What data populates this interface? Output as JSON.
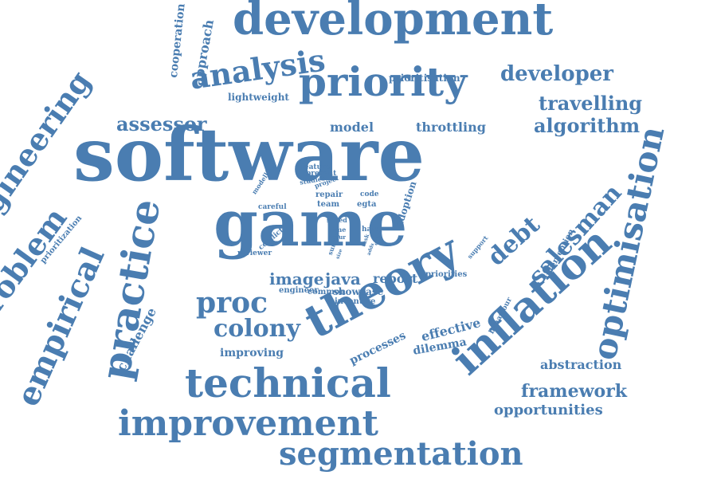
{
  "color": "#4a7db1",
  "background": "#ffffff",
  "words": [
    {
      "text": "software",
      "size": 92
    },
    {
      "text": "game",
      "size": 80
    },
    {
      "text": "development",
      "size": 56
    },
    {
      "text": "theory",
      "size": 58
    },
    {
      "text": "priority",
      "size": 50
    },
    {
      "text": "inflation",
      "size": 52
    },
    {
      "text": "technical",
      "size": 50
    },
    {
      "text": "improvement",
      "size": 44
    },
    {
      "text": "segmentation",
      "size": 40
    },
    {
      "text": "practice",
      "size": 50
    },
    {
      "text": "optimisation",
      "size": 42
    },
    {
      "text": "engineering",
      "size": 38
    },
    {
      "text": "empirical",
      "size": 40
    },
    {
      "text": "problem",
      "size": 38
    },
    {
      "text": "analysis",
      "size": 38
    },
    {
      "text": "proc",
      "size": 36
    },
    {
      "text": "colony",
      "size": 30
    },
    {
      "text": "salesman",
      "size": 30
    },
    {
      "text": "developer",
      "size": 26
    },
    {
      "text": "travelling",
      "size": 24
    },
    {
      "text": "algorithm",
      "size": 24
    },
    {
      "text": "assessor",
      "size": 24
    },
    {
      "text": "debt",
      "size": 30
    },
    {
      "text": "framework",
      "size": 22
    },
    {
      "text": "opportunities",
      "size": 18
    },
    {
      "text": "abstraction",
      "size": 16
    },
    {
      "text": "image",
      "size": 20
    },
    {
      "text": "java",
      "size": 20
    },
    {
      "text": "report",
      "size": 16
    },
    {
      "text": "model",
      "size": 16
    },
    {
      "text": "throttling",
      "size": 16
    },
    {
      "text": "effective",
      "size": 16
    },
    {
      "text": "challenge",
      "size": 16
    },
    {
      "text": "processes",
      "size": 14
    },
    {
      "text": "dilemma",
      "size": 14
    },
    {
      "text": "approach",
      "size": 16
    },
    {
      "text": "cooperation",
      "size": 14
    },
    {
      "text": "prioritisation",
      "size": 12
    },
    {
      "text": "lightweight",
      "size": 12
    },
    {
      "text": "improving",
      "size": 14
    },
    {
      "text": "adoption",
      "size": 12
    },
    {
      "text": "showcase",
      "size": 12
    },
    {
      "text": "incentive",
      "size": 10
    },
    {
      "text": "intervention",
      "size": 10
    },
    {
      "text": "behaviour",
      "size": 9
    },
    {
      "text": "prioritization",
      "size": 10
    },
    {
      "text": "engineer",
      "size": 10
    },
    {
      "text": "common",
      "size": 10
    },
    {
      "text": "priorities",
      "size": 10
    },
    {
      "text": "reviewer",
      "size": 9
    },
    {
      "text": "conflict",
      "size": 9
    },
    {
      "text": "feature",
      "size": 9
    },
    {
      "text": "present",
      "size": 9
    },
    {
      "text": "studies",
      "size": 8
    },
    {
      "text": "project",
      "size": 8
    },
    {
      "text": "modelling",
      "size": 8
    },
    {
      "text": "repair",
      "size": 10
    },
    {
      "text": "code",
      "size": 9
    },
    {
      "text": "team",
      "size": 10
    },
    {
      "text": "egta",
      "size": 10
    },
    {
      "text": "careful",
      "size": 9
    },
    {
      "text": "speed",
      "size": 8
    },
    {
      "text": "time",
      "size": 8
    },
    {
      "text": "hard",
      "size": 9
    },
    {
      "text": "occur",
      "size": 7
    },
    {
      "text": "survey",
      "size": 8
    },
    {
      "text": "task",
      "size": 7
    },
    {
      "text": "adds",
      "size": 6
    },
    {
      "text": "support",
      "size": 8
    },
    {
      "text": "size",
      "size": 6
    },
    {
      "text": "quick",
      "size": 6
    }
  ]
}
